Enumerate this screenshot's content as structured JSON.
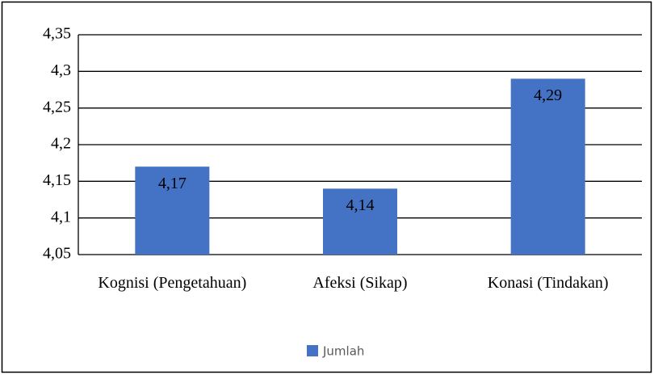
{
  "chart_data": {
    "type": "bar",
    "categories": [
      "Kognisi (Pengetahuan)",
      "Afeksi (Sikap)",
      "Konasi (Tindakan)"
    ],
    "series": [
      {
        "name": "Jumlah",
        "color": "#4472c4",
        "values": [
          4.17,
          4.14,
          4.29
        ],
        "value_labels": [
          "4,17",
          "4,14",
          "4,29"
        ]
      }
    ],
    "ylim": [
      4.05,
      4.35
    ],
    "yticks": [
      {
        "value": 4.05,
        "label": "4,05"
      },
      {
        "value": 4.1,
        "label": "4,1"
      },
      {
        "value": 4.15,
        "label": "4,15"
      },
      {
        "value": 4.2,
        "label": "4,2"
      },
      {
        "value": 4.25,
        "label": "4,25"
      },
      {
        "value": 4.3,
        "label": "4,3"
      },
      {
        "value": 4.35,
        "label": "4,35"
      }
    ],
    "grid": true,
    "legend": "bottom"
  }
}
